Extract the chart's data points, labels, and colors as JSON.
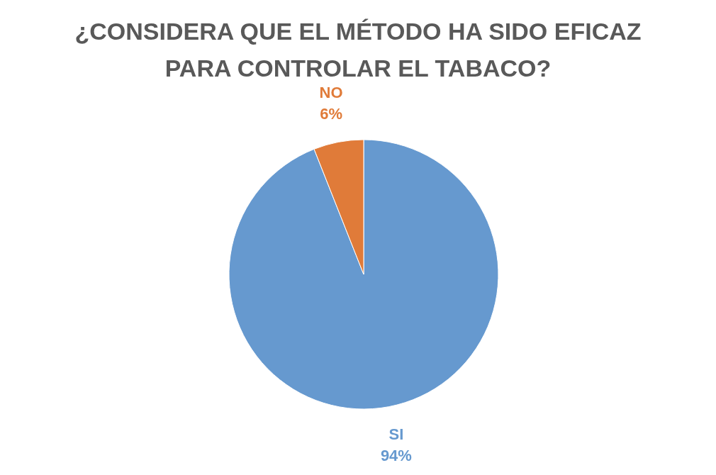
{
  "chart_data": {
    "type": "pie",
    "title": "¿CONSIDERA QUE EL MÉTODO HA SIDO EFICAZ PARA CONTROLAR EL TABACO?",
    "categories": [
      "SI",
      "NO"
    ],
    "values": [
      94,
      6
    ],
    "colors": [
      "#6699cf",
      "#e07b39"
    ],
    "value_labels": [
      "94%",
      "6%"
    ]
  }
}
